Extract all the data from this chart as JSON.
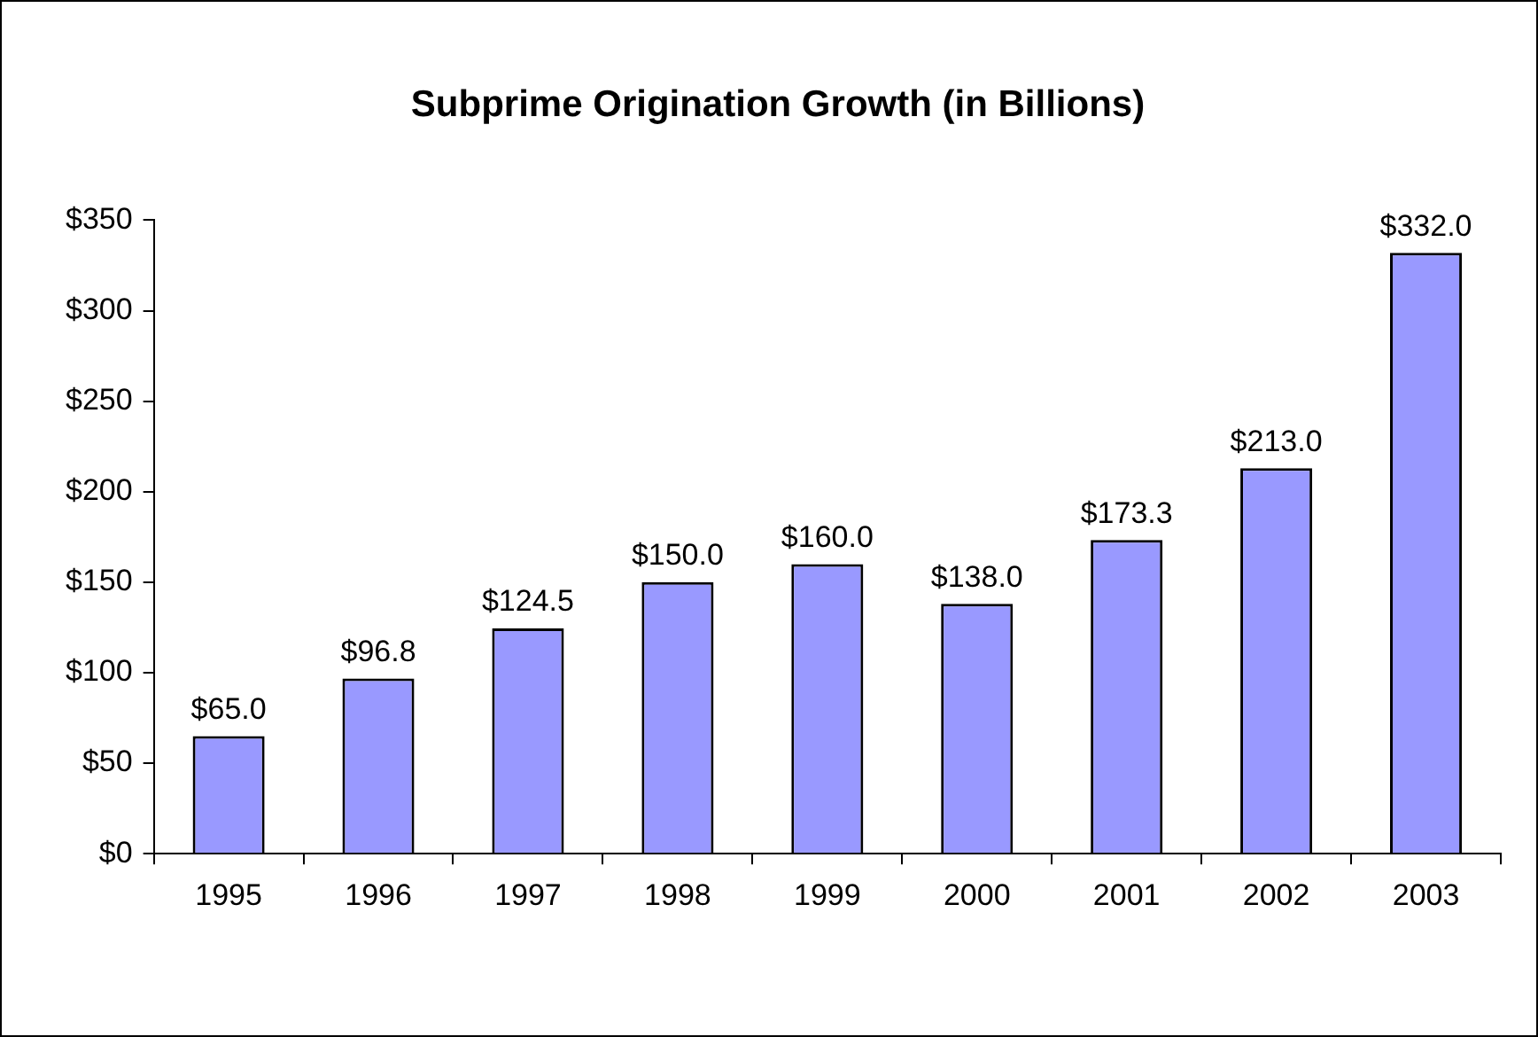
{
  "chart_data": {
    "type": "bar",
    "title": "Subprime Origination Growth (in Billions)",
    "categories": [
      "1995",
      "1996",
      "1997",
      "1998",
      "1999",
      "2000",
      "2001",
      "2002",
      "2003"
    ],
    "values": [
      65.0,
      96.8,
      124.5,
      150.0,
      160.0,
      138.0,
      173.3,
      213.0,
      332.0
    ],
    "value_labels": [
      "$65.0",
      "$96.8",
      "$124.5",
      "$150.0",
      "$160.0",
      "$138.0",
      "$173.3",
      "$213.0",
      "$332.0"
    ],
    "color": "#9999ff",
    "ylim": [
      0,
      350
    ],
    "yticks": [
      {
        "value": 0,
        "label": "$0"
      },
      {
        "value": 50,
        "label": "$50"
      },
      {
        "value": 100,
        "label": "$100"
      },
      {
        "value": 150,
        "label": "$150"
      },
      {
        "value": 200,
        "label": "$200"
      },
      {
        "value": 250,
        "label": "$250"
      },
      {
        "value": 300,
        "label": "$300"
      },
      {
        "value": 350,
        "label": "$350"
      }
    ],
    "grid": false,
    "legend": false
  }
}
